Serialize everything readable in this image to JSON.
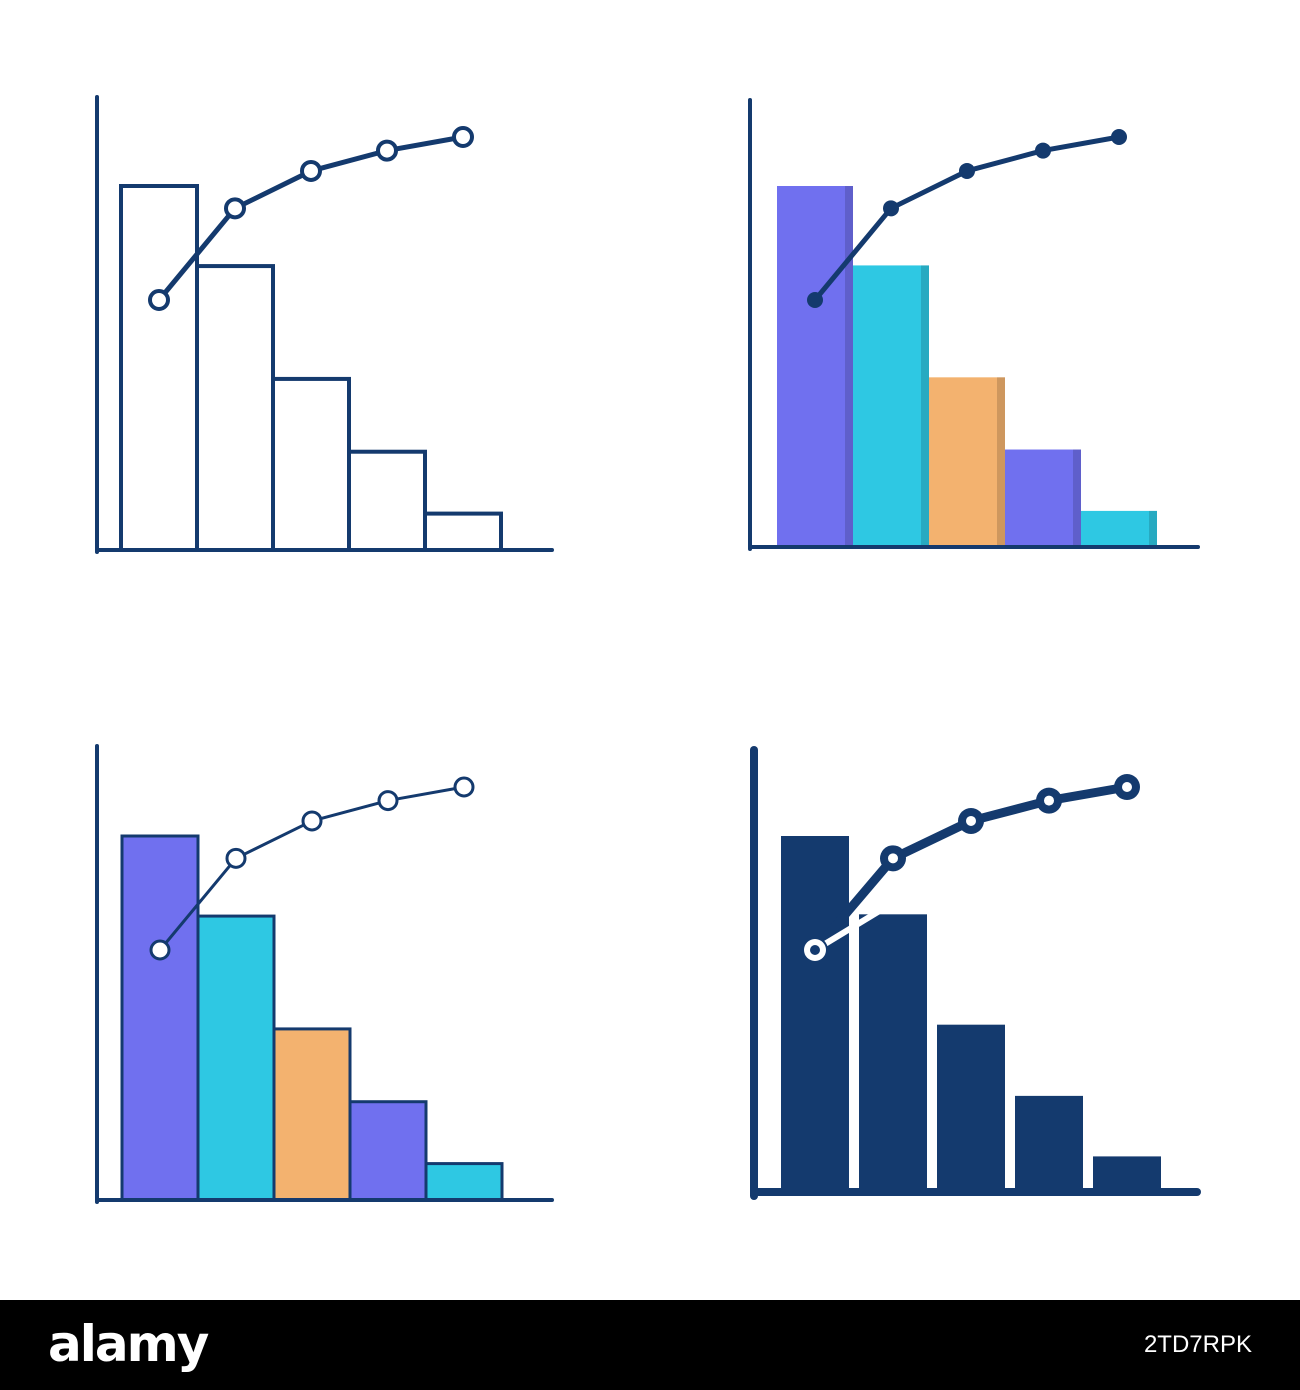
{
  "icon_set": [
    {
      "style": "outline"
    },
    {
      "style": "flat-color"
    },
    {
      "style": "filled-outline"
    },
    {
      "style": "solid"
    }
  ],
  "chart_data": {
    "type": "bar",
    "categories": [
      "",
      "",
      "",
      "",
      ""
    ],
    "series": [
      {
        "type": "bar",
        "values": [
          100,
          78,
          47,
          27,
          10
        ]
      },
      {
        "type": "line",
        "values": [
          70,
          97,
          108,
          114,
          118
        ]
      }
    ],
    "ylim": [
      0,
      130
    ],
    "grid": false
  },
  "colors": {
    "navy": "#143a6e",
    "purple": "#7070ef",
    "cyan": "#2ec8e3",
    "orange": "#f3b26f",
    "footer_bg": "#000000"
  },
  "footer": {
    "brand": "alamy",
    "image_id": "2TD7RPK"
  }
}
